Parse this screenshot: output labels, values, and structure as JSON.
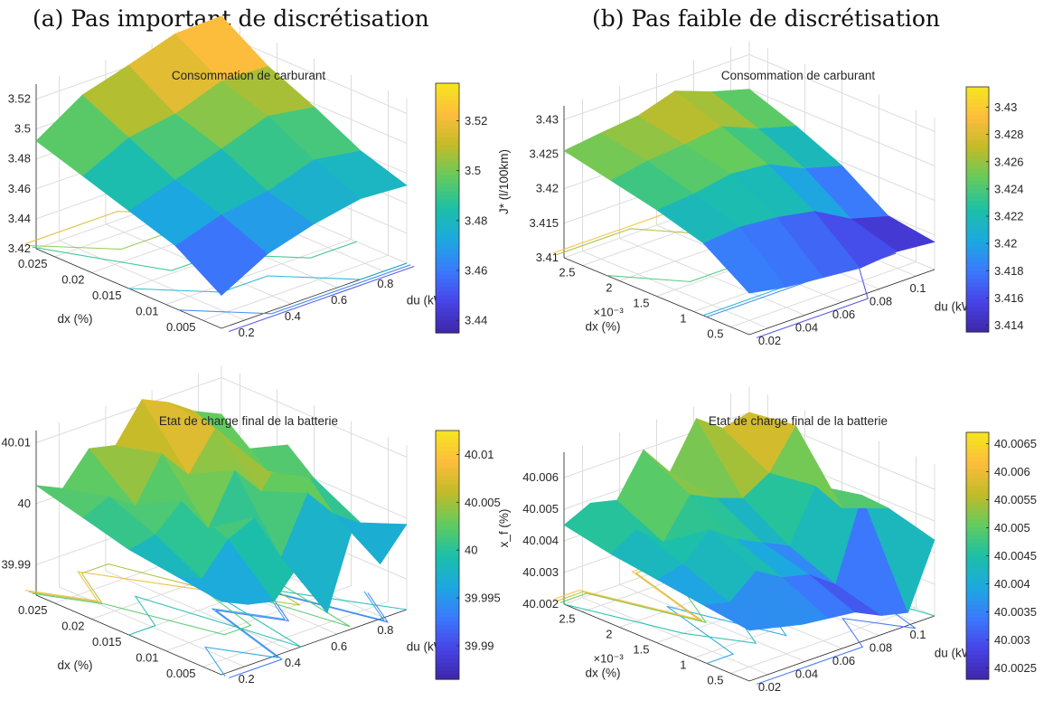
{
  "captions": {
    "a": "(a) Pas important de discrétisation",
    "b": "(b) Pas faible de discrétisation"
  },
  "colormap": [
    "#3e26a8",
    "#4744e8",
    "#3a7bfc",
    "#1ca9df",
    "#1cc0a6",
    "#63cb5e",
    "#c2bb28",
    "#fdbd3c",
    "#f6e61f"
  ],
  "chart_data": [
    {
      "type": "surface",
      "title": "Consommation de carburant",
      "zlabel": "J* (l/100km)",
      "xlabel": "du (kW)",
      "ylabel": "dx (%)",
      "y_multiplier": "",
      "zlim": [
        3.42,
        3.53
      ],
      "x_ticks": [
        "0.2",
        "0.4",
        "0.6",
        "0.8"
      ],
      "y_ticks": [
        "0.025",
        "0.02",
        "0.015",
        "0.01",
        "0.005"
      ],
      "z_ticks": [
        "3.52",
        "3.5",
        "3.48",
        "3.46",
        "3.44",
        "3.42"
      ],
      "z_tick_values": [
        3.52,
        3.5,
        3.48,
        3.46,
        3.44,
        3.42
      ],
      "colorbar_ticks": [
        "3.52",
        "3.5",
        "3.48",
        "3.46",
        "3.44"
      ],
      "colorbar_tick_values": [
        3.52,
        3.5,
        3.48,
        3.46,
        3.44
      ],
      "colorbar_range": [
        3.435,
        3.535
      ],
      "grid": true,
      "surface": [
        [
          3.492,
          3.512,
          3.521,
          3.531,
          3.532
        ],
        [
          3.482,
          3.497,
          3.502,
          3.513,
          3.512
        ],
        [
          3.472,
          3.482,
          3.492,
          3.503,
          3.498
        ],
        [
          3.462,
          3.472,
          3.477,
          3.487,
          3.482
        ],
        [
          3.442,
          3.459,
          3.468,
          3.474,
          3.472
        ]
      ]
    },
    {
      "type": "surface",
      "title": "Consommation de carburant",
      "zlabel": "J* (l/100km)",
      "xlabel": "du (kW)",
      "ylabel": "dx (%)",
      "y_multiplier": "×10⁻³",
      "zlim": [
        3.41,
        3.432
      ],
      "x_ticks": [
        "0.02",
        "0.04",
        "0.06",
        "0.08",
        "0.1"
      ],
      "y_ticks": [
        "2.5",
        "2",
        "1.5",
        "1",
        "0.5"
      ],
      "z_ticks": [
        "3.43",
        "3.425",
        "3.42",
        "3.415",
        "3.41"
      ],
      "z_tick_values": [
        3.43,
        3.425,
        3.42,
        3.415,
        3.41
      ],
      "colorbar_ticks": [
        "3.43",
        "3.428",
        "3.426",
        "3.424",
        "3.422",
        "3.42",
        "3.418",
        "3.416",
        "3.414"
      ],
      "colorbar_tick_values": [
        3.43,
        3.428,
        3.426,
        3.424,
        3.422,
        3.42,
        3.418,
        3.416,
        3.414
      ],
      "colorbar_range": [
        3.4135,
        3.4315
      ],
      "grid": true,
      "surface": [
        [
          3.4255,
          3.4262,
          3.4268,
          3.4285,
          3.4265,
          3.425
        ],
        [
          3.424,
          3.425,
          3.4255,
          3.4262,
          3.424,
          3.4225
        ],
        [
          3.4225,
          3.423,
          3.424,
          3.4235,
          3.421,
          3.4195
        ],
        [
          3.4205,
          3.421,
          3.4205,
          3.4195,
          3.4165,
          3.415
        ],
        [
          3.416,
          3.415,
          3.4145,
          3.414,
          3.4145,
          3.414
        ]
      ]
    },
    {
      "type": "surface",
      "title": "Etat de charge final de la batterie",
      "zlabel": "x_f (%)",
      "xlabel": "du (kW)",
      "ylabel": "dx (%)",
      "y_multiplier": "",
      "zlim": [
        39.985,
        40.012
      ],
      "x_ticks": [
        "0.2",
        "0.4",
        "0.6",
        "0.8"
      ],
      "y_ticks": [
        "0.025",
        "0.02",
        "0.015",
        "0.01",
        "0.005"
      ],
      "z_ticks": [
        "40.01",
        "40",
        "39.99"
      ],
      "z_tick_values": [
        40.01,
        40.0,
        39.99
      ],
      "colorbar_ticks": [
        "40.01",
        "40.005",
        "40",
        "39.995",
        "39.99"
      ],
      "colorbar_tick_values": [
        40.01,
        40.005,
        40.0,
        39.995,
        39.99
      ],
      "colorbar_range": [
        39.9865,
        40.0125
      ],
      "grid": true,
      "surface": [
        [
          40.003,
          40.001,
          40.006,
          40.005,
          40.011,
          40.009,
          40.006,
          40.004
        ],
        [
          40.001,
          40.003,
          40.0,
          40.007,
          40.002,
          40.008,
          40.003,
          39.998
        ],
        [
          39.999,
          40.0,
          40.004,
          39.998,
          40.006,
          40.001,
          40.007,
          40.0
        ],
        [
          39.998,
          39.996,
          40.001,
          40.003,
          39.995,
          40.004,
          39.999,
          39.996
        ],
        [
          39.997,
          39.995,
          39.994,
          39.999,
          39.989,
          40.002,
          39.994,
          39.999
        ]
      ]
    },
    {
      "type": "surface",
      "title": "Etat de charge final de la batterie",
      "zlabel": "x_f (%)",
      "xlabel": "du (kW)",
      "ylabel": "dx (%)",
      "y_multiplier": "×10⁻³",
      "zlim": [
        40.002,
        40.0068
      ],
      "x_ticks": [
        "0.02",
        "0.04",
        "0.06",
        "0.08",
        "0.1"
      ],
      "y_ticks": [
        "2.5",
        "2",
        "1.5",
        "1",
        "0.5"
      ],
      "z_ticks": [
        "40.006",
        "40.005",
        "40.004",
        "40.003",
        "40.002"
      ],
      "z_tick_values": [
        40.006,
        40.005,
        40.004,
        40.003,
        40.002
      ],
      "colorbar_ticks": [
        "40.0065",
        "40.006",
        "40.0055",
        "40.005",
        "40.0045",
        "40.004",
        "40.0035",
        "40.003",
        "40.0025"
      ],
      "colorbar_tick_values": [
        40.0065,
        40.006,
        40.0055,
        40.005,
        40.0045,
        40.004,
        40.0035,
        40.003,
        40.0025
      ],
      "colorbar_range": [
        40.0023,
        40.0067
      ],
      "grid": true,
      "surface": [
        [
          40.0045,
          40.0049,
          40.0047,
          40.006,
          40.005,
          40.0064,
          40.0058,
          40.006
        ],
        [
          40.0042,
          40.0047,
          40.004,
          40.0052,
          40.0048,
          40.0045,
          40.005,
          40.0062
        ],
        [
          40.004,
          40.0042,
          40.005,
          40.0044,
          40.004,
          40.0036,
          40.0052,
          40.0042
        ],
        [
          40.0038,
          40.0036,
          40.0043,
          40.0038,
          40.0036,
          40.003,
          40.0055,
          40.0048
        ],
        [
          40.0036,
          40.0034,
          40.0032,
          40.0031,
          40.003,
          40.0026,
          40.0024,
          40.0044
        ]
      ]
    }
  ]
}
